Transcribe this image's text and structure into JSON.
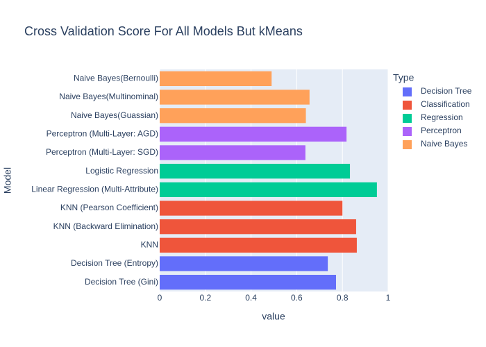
{
  "chart_data": {
    "type": "bar",
    "orientation": "horizontal",
    "title": "Cross Validation Score For All Models But kMeans",
    "x_label": "value",
    "y_label": "Model",
    "legend_title": "Type",
    "legend_position": "right",
    "categories": [
      "Decision Tree (Gini)",
      "Decision Tree (Entropy)",
      "KNN",
      "KNN (Backward Elimination)",
      "KNN (Pearson Coefficient)",
      "Linear Regression (Multi-Attribute)",
      "Logistic Regression",
      "Perceptron (Multi-Layer: SGD)",
      "Perceptron (Multi-Layer: AGD)",
      "Naive Bayes(Guassian)",
      "Naive Bayes(Multinominal)",
      "Naive Bayes(Bernoulli)"
    ],
    "series": [
      {
        "name": "Decision Tree",
        "color": "#636efa",
        "values": [
          0.772,
          0.736,
          null,
          null,
          null,
          null,
          null,
          null,
          null,
          null,
          null,
          null
        ]
      },
      {
        "name": "Classification",
        "color": "#ef553b",
        "values": [
          null,
          null,
          0.863,
          0.86,
          0.8,
          null,
          null,
          null,
          null,
          null,
          null,
          null
        ]
      },
      {
        "name": "Regression",
        "color": "#00cc96",
        "values": [
          null,
          null,
          null,
          null,
          null,
          0.951,
          0.833,
          null,
          null,
          null,
          null,
          null
        ]
      },
      {
        "name": "Perceptron",
        "color": "#ab63fa",
        "values": [
          null,
          null,
          null,
          null,
          null,
          null,
          null,
          0.638,
          0.818,
          null,
          null,
          null
        ]
      },
      {
        "name": "Naive Bayes",
        "color": "#ffa15a",
        "values": [
          null,
          null,
          null,
          null,
          null,
          null,
          null,
          null,
          null,
          0.64,
          0.656,
          0.49
        ]
      }
    ],
    "xlim": [
      0,
      1
    ],
    "xticks": [
      0,
      0.2,
      0.4,
      0.6,
      0.8,
      1
    ],
    "grid": true
  }
}
